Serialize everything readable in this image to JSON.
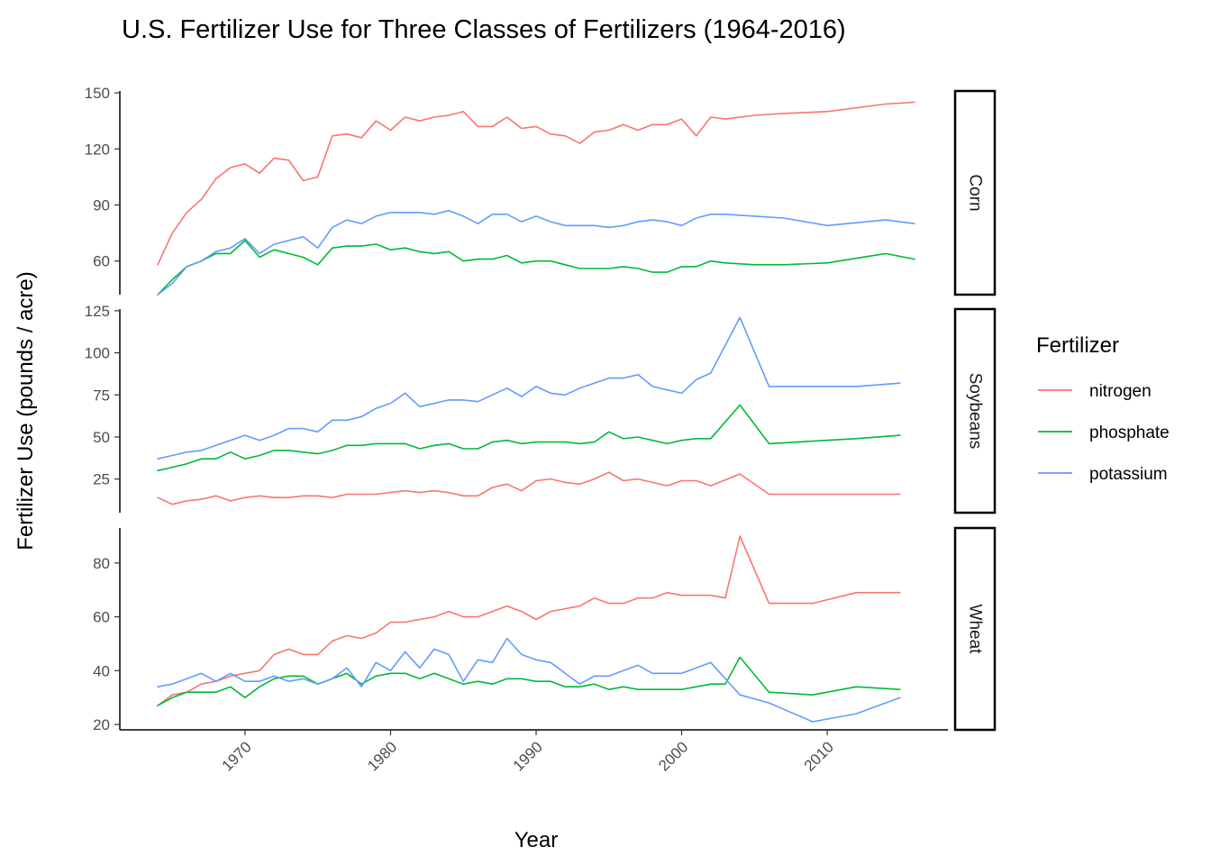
{
  "chart_data": {
    "type": "line",
    "title": "U.S. Fertilizer Use for Three Classes of Fertilizers (1964-2016)",
    "xlabel": "Year",
    "ylabel": "Fertilizer Use (pounds / acre)",
    "xlim": [
      1964,
      2016
    ],
    "x_ticks": [
      1970,
      1980,
      1990,
      2000,
      2010
    ],
    "grid": false,
    "legend": {
      "title": "Fertilizer",
      "position": "right",
      "entries": [
        "nitrogen",
        "phosphate",
        "potassium"
      ]
    },
    "colors": {
      "nitrogen": "#F8766D",
      "phosphate": "#00BA38",
      "potassium": "#619CFF"
    },
    "panels": [
      {
        "name": "Corn",
        "ylim": [
          42,
          151
        ],
        "y_ticks": [
          60,
          90,
          120,
          150
        ],
        "series": [
          {
            "name": "nitrogen",
            "x": [
              1964,
              1965,
              1966,
              1967,
              1968,
              1969,
              1970,
              1971,
              1972,
              1973,
              1974,
              1975,
              1976,
              1977,
              1978,
              1979,
              1980,
              1981,
              1982,
              1983,
              1984,
              1985,
              1986,
              1987,
              1988,
              1989,
              1990,
              1991,
              1992,
              1993,
              1994,
              1995,
              1996,
              1997,
              1998,
              1999,
              2000,
              2001,
              2002,
              2003,
              2005,
              2007,
              2010,
              2014,
              2016
            ],
            "values": [
              58,
              75,
              86,
              93,
              104,
              110,
              112,
              107,
              115,
              114,
              103,
              105,
              127,
              128,
              126,
              135,
              130,
              137,
              135,
              137,
              138,
              140,
              132,
              132,
              137,
              131,
              132,
              128,
              127,
              123,
              129,
              130,
              133,
              130,
              133,
              133,
              136,
              127,
              137,
              136,
              138,
              139,
              140,
              144,
              145
            ]
          },
          {
            "name": "phosphate",
            "x": [
              1964,
              1965,
              1966,
              1967,
              1968,
              1969,
              1970,
              1971,
              1972,
              1973,
              1974,
              1975,
              1976,
              1977,
              1978,
              1979,
              1980,
              1981,
              1982,
              1983,
              1984,
              1985,
              1986,
              1987,
              1988,
              1989,
              1990,
              1991,
              1992,
              1993,
              1994,
              1995,
              1996,
              1997,
              1998,
              1999,
              2000,
              2001,
              2002,
              2003,
              2005,
              2007,
              2010,
              2014,
              2016
            ],
            "values": [
              42,
              50,
              57,
              60,
              64,
              64,
              71,
              62,
              66,
              64,
              62,
              58,
              67,
              68,
              68,
              69,
              66,
              67,
              65,
              64,
              65,
              60,
              61,
              61,
              63,
              59,
              60,
              60,
              58,
              56,
              56,
              56,
              57,
              56,
              54,
              54,
              57,
              57,
              60,
              59,
              58,
              58,
              59,
              64,
              61
            ]
          },
          {
            "name": "potassium",
            "x": [
              1964,
              1965,
              1966,
              1967,
              1968,
              1969,
              1970,
              1971,
              1972,
              1973,
              1974,
              1975,
              1976,
              1977,
              1978,
              1979,
              1980,
              1981,
              1982,
              1983,
              1984,
              1985,
              1986,
              1987,
              1988,
              1989,
              1990,
              1991,
              1992,
              1993,
              1994,
              1995,
              1996,
              1997,
              1998,
              1999,
              2000,
              2001,
              2002,
              2003,
              2005,
              2007,
              2010,
              2014,
              2016
            ],
            "values": [
              42,
              48,
              57,
              60,
              65,
              67,
              72,
              64,
              69,
              71,
              73,
              67,
              78,
              82,
              80,
              84,
              86,
              86,
              86,
              85,
              87,
              84,
              80,
              85,
              85,
              81,
              84,
              81,
              79,
              79,
              79,
              78,
              79,
              81,
              82,
              81,
              79,
              83,
              85,
              85,
              84,
              83,
              79,
              82,
              80
            ]
          }
        ]
      },
      {
        "name": "Soybeans",
        "ylim": [
          5,
          126
        ],
        "y_ticks": [
          25,
          50,
          75,
          100,
          125
        ],
        "series": [
          {
            "name": "nitrogen",
            "x": [
              1964,
              1965,
              1966,
              1967,
              1968,
              1969,
              1970,
              1971,
              1972,
              1973,
              1974,
              1975,
              1976,
              1977,
              1978,
              1979,
              1980,
              1981,
              1982,
              1983,
              1984,
              1985,
              1986,
              1987,
              1988,
              1989,
              1990,
              1991,
              1992,
              1993,
              1994,
              1995,
              1996,
              1997,
              1998,
              1999,
              2000,
              2001,
              2002,
              2004,
              2006,
              2012,
              2015
            ],
            "values": [
              14,
              10,
              12,
              13,
              15,
              12,
              14,
              15,
              14,
              14,
              15,
              15,
              14,
              16,
              16,
              16,
              17,
              18,
              17,
              18,
              17,
              15,
              15,
              20,
              22,
              18,
              24,
              25,
              23,
              22,
              25,
              29,
              24,
              25,
              23,
              21,
              24,
              24,
              21,
              28,
              16,
              16,
              16
            ]
          },
          {
            "name": "phosphate",
            "x": [
              1964,
              1965,
              1966,
              1967,
              1968,
              1969,
              1970,
              1971,
              1972,
              1973,
              1974,
              1975,
              1976,
              1977,
              1978,
              1979,
              1980,
              1981,
              1982,
              1983,
              1984,
              1985,
              1986,
              1987,
              1988,
              1989,
              1990,
              1991,
              1992,
              1993,
              1994,
              1995,
              1996,
              1997,
              1998,
              1999,
              2000,
              2001,
              2002,
              2004,
              2006,
              2012,
              2015
            ],
            "values": [
              30,
              32,
              34,
              37,
              37,
              41,
              37,
              39,
              42,
              42,
              41,
              40,
              42,
              45,
              45,
              46,
              46,
              46,
              43,
              45,
              46,
              43,
              43,
              47,
              48,
              46,
              47,
              47,
              47,
              46,
              47,
              53,
              49,
              50,
              48,
              46,
              48,
              49,
              49,
              69,
              46,
              49,
              51
            ]
          },
          {
            "name": "potassium",
            "x": [
              1964,
              1965,
              1966,
              1967,
              1968,
              1969,
              1970,
              1971,
              1972,
              1973,
              1974,
              1975,
              1976,
              1977,
              1978,
              1979,
              1980,
              1981,
              1982,
              1983,
              1984,
              1985,
              1986,
              1987,
              1988,
              1989,
              1990,
              1991,
              1992,
              1993,
              1994,
              1995,
              1996,
              1997,
              1998,
              1999,
              2000,
              2001,
              2002,
              2004,
              2006,
              2012,
              2015
            ],
            "values": [
              37,
              39,
              41,
              42,
              45,
              48,
              51,
              48,
              51,
              55,
              55,
              53,
              60,
              60,
              62,
              67,
              70,
              76,
              68,
              70,
              72,
              72,
              71,
              75,
              79,
              74,
              80,
              76,
              75,
              79,
              82,
              85,
              85,
              87,
              80,
              78,
              76,
              84,
              88,
              121,
              80,
              80,
              82
            ]
          }
        ]
      },
      {
        "name": "Wheat",
        "ylim": [
          18,
          93
        ],
        "y_ticks": [
          20,
          40,
          60,
          80
        ],
        "series": [
          {
            "name": "nitrogen",
            "x": [
              1964,
              1965,
              1966,
              1967,
              1968,
              1969,
              1970,
              1971,
              1972,
              1973,
              1974,
              1975,
              1976,
              1977,
              1978,
              1979,
              1980,
              1981,
              1982,
              1983,
              1984,
              1985,
              1986,
              1987,
              1988,
              1989,
              1990,
              1991,
              1992,
              1993,
              1994,
              1995,
              1996,
              1997,
              1998,
              1999,
              2000,
              2001,
              2002,
              2003,
              2004,
              2006,
              2009,
              2012,
              2015
            ],
            "values": [
              27,
              31,
              32,
              35,
              36,
              38,
              39,
              40,
              46,
              48,
              46,
              46,
              51,
              53,
              52,
              54,
              58,
              58,
              59,
              60,
              62,
              60,
              60,
              62,
              64,
              62,
              59,
              62,
              63,
              64,
              67,
              65,
              65,
              67,
              67,
              69,
              68,
              68,
              68,
              67,
              90,
              65,
              65,
              69,
              69
            ]
          },
          {
            "name": "phosphate",
            "x": [
              1964,
              1965,
              1966,
              1967,
              1968,
              1969,
              1970,
              1971,
              1972,
              1973,
              1974,
              1975,
              1976,
              1977,
              1978,
              1979,
              1980,
              1981,
              1982,
              1983,
              1984,
              1985,
              1986,
              1987,
              1988,
              1989,
              1990,
              1991,
              1992,
              1993,
              1994,
              1995,
              1996,
              1997,
              1998,
              1999,
              2000,
              2001,
              2002,
              2003,
              2004,
              2006,
              2009,
              2012,
              2015
            ],
            "values": [
              27,
              30,
              32,
              32,
              32,
              34,
              30,
              34,
              37,
              38,
              38,
              35,
              37,
              39,
              35,
              38,
              39,
              39,
              37,
              39,
              37,
              35,
              36,
              35,
              37,
              37,
              36,
              36,
              34,
              34,
              35,
              33,
              34,
              33,
              33,
              33,
              33,
              34,
              35,
              35,
              45,
              32,
              31,
              34,
              33
            ]
          },
          {
            "name": "potassium",
            "x": [
              1964,
              1965,
              1966,
              1967,
              1968,
              1969,
              1970,
              1971,
              1972,
              1973,
              1974,
              1975,
              1976,
              1977,
              1978,
              1979,
              1980,
              1981,
              1982,
              1983,
              1984,
              1985,
              1986,
              1987,
              1988,
              1989,
              1990,
              1991,
              1992,
              1993,
              1994,
              1995,
              1996,
              1997,
              1998,
              1999,
              2000,
              2001,
              2002,
              2003,
              2004,
              2006,
              2009,
              2012,
              2015
            ],
            "values": [
              34,
              35,
              37,
              39,
              36,
              39,
              36,
              36,
              38,
              36,
              37,
              35,
              37,
              41,
              34,
              43,
              40,
              47,
              41,
              48,
              46,
              36,
              44,
              43,
              52,
              46,
              44,
              43,
              39,
              35,
              38,
              38,
              40,
              42,
              39,
              39,
              39,
              41,
              43,
              37,
              31,
              28,
              21,
              24,
              30
            ]
          }
        ]
      }
    ]
  }
}
